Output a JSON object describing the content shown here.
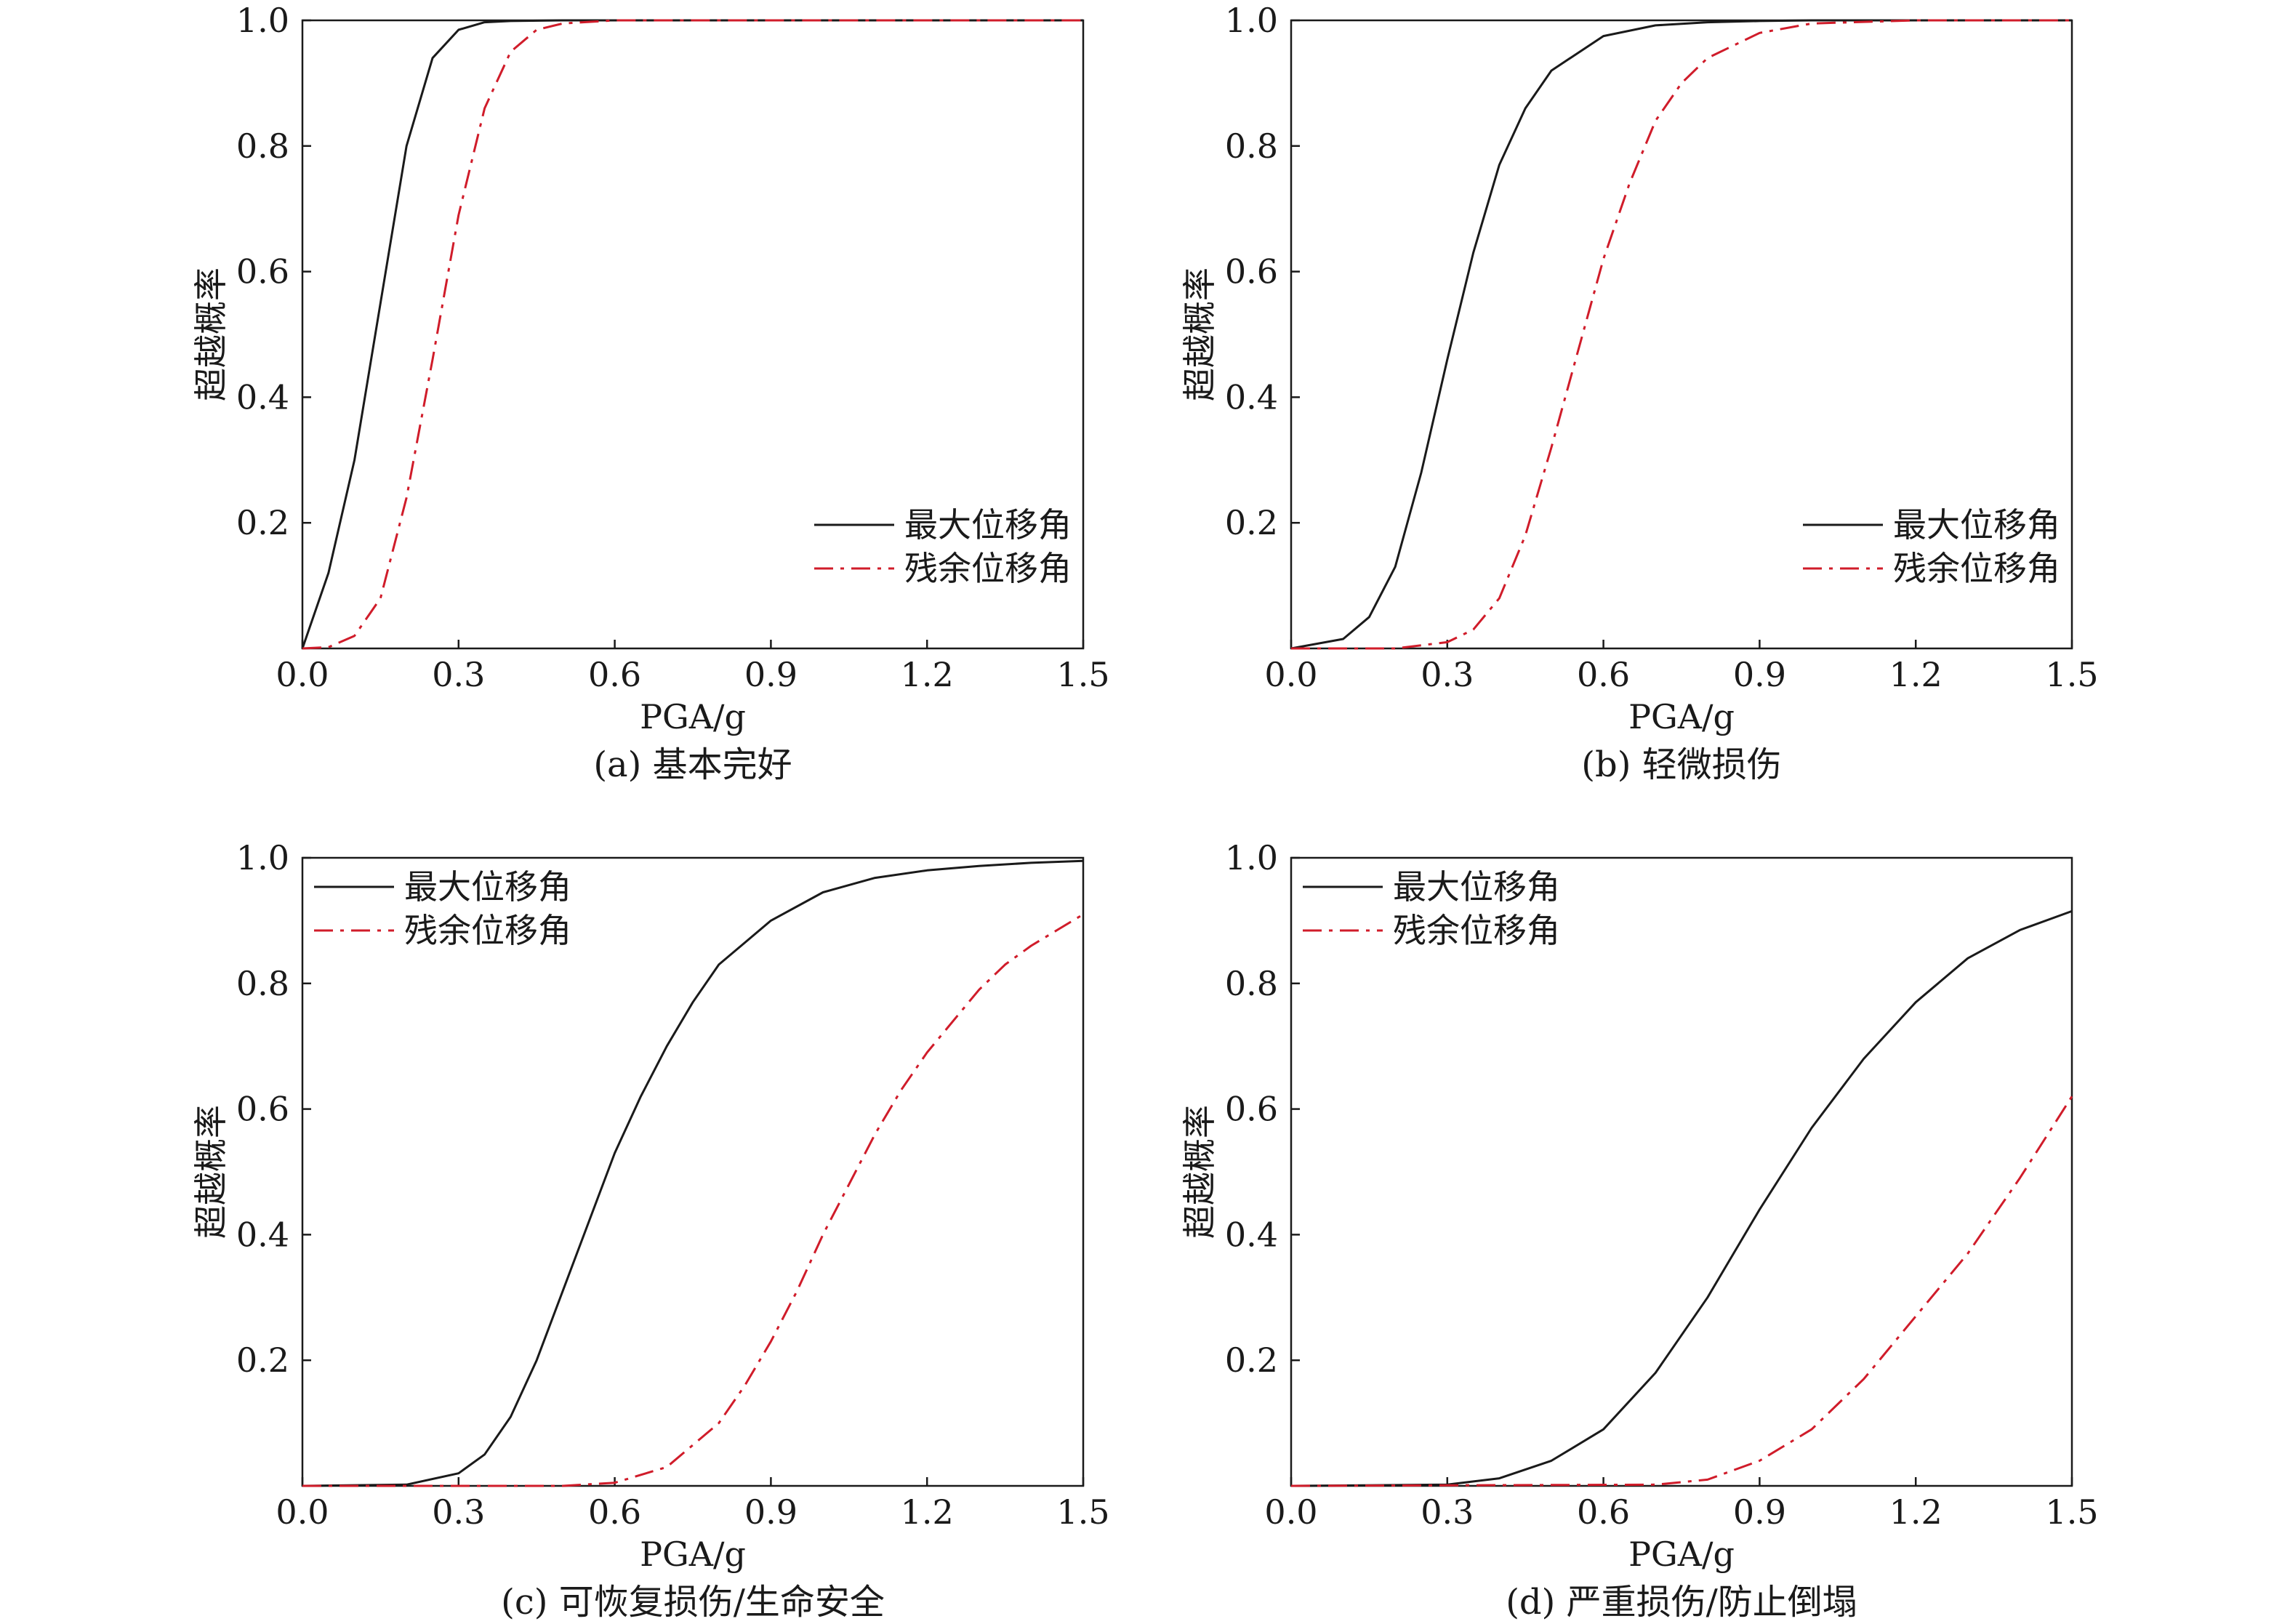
{
  "chart_data": [
    {
      "type": "line",
      "caption": "(a) 基本完好",
      "xlabel": "PGA/g",
      "ylabel": "超越概率",
      "xlim": [
        0,
        1.5
      ],
      "ylim": [
        0,
        1
      ],
      "xticks": [
        "0.0",
        "0.3",
        "0.6",
        "0.9",
        "1.2",
        "1.5"
      ],
      "yticks": [
        "0.2",
        "0.4",
        "0.6",
        "0.8",
        "1.0"
      ],
      "legend_position": "bottom-right",
      "series": [
        {
          "name": "最大位移角",
          "style": "solid",
          "color": "#1a1a1a",
          "x": [
            0.0,
            0.05,
            0.1,
            0.15,
            0.2,
            0.25,
            0.3,
            0.35,
            0.4,
            0.5,
            0.6,
            0.9,
            1.2,
            1.5
          ],
          "y": [
            0.0,
            0.12,
            0.3,
            0.55,
            0.8,
            0.94,
            0.985,
            0.997,
            0.999,
            1.0,
            1.0,
            1.0,
            1.0,
            1.0
          ]
        },
        {
          "name": "残余位移角",
          "style": "dashdot",
          "color": "#d01c2a",
          "x": [
            0.0,
            0.05,
            0.1,
            0.15,
            0.2,
            0.25,
            0.3,
            0.35,
            0.4,
            0.45,
            0.5,
            0.6,
            0.9,
            1.2,
            1.5
          ],
          "y": [
            0.0,
            0.002,
            0.02,
            0.08,
            0.24,
            0.46,
            0.69,
            0.86,
            0.95,
            0.985,
            0.995,
            1.0,
            1.0,
            1.0,
            1.0
          ]
        }
      ]
    },
    {
      "type": "line",
      "caption": "(b) 轻微损伤",
      "xlabel": "PGA/g",
      "ylabel": "超越概率",
      "xlim": [
        0,
        1.5
      ],
      "ylim": [
        0,
        1
      ],
      "xticks": [
        "0.0",
        "0.3",
        "0.6",
        "0.9",
        "1.2",
        "1.5"
      ],
      "yticks": [
        "0.2",
        "0.4",
        "0.6",
        "0.8",
        "1.0"
      ],
      "legend_position": "bottom-right",
      "series": [
        {
          "name": "最大位移角",
          "style": "solid",
          "color": "#1a1a1a",
          "x": [
            0.0,
            0.1,
            0.15,
            0.2,
            0.25,
            0.3,
            0.35,
            0.4,
            0.45,
            0.5,
            0.6,
            0.7,
            0.8,
            0.9,
            1.0,
            1.2,
            1.5
          ],
          "y": [
            0.0,
            0.015,
            0.05,
            0.13,
            0.28,
            0.46,
            0.63,
            0.77,
            0.86,
            0.92,
            0.975,
            0.992,
            0.997,
            0.999,
            1.0,
            1.0,
            1.0
          ]
        },
        {
          "name": "残余位移角",
          "style": "dashdot",
          "color": "#d01c2a",
          "x": [
            0.0,
            0.2,
            0.3,
            0.35,
            0.4,
            0.45,
            0.5,
            0.55,
            0.6,
            0.65,
            0.7,
            0.75,
            0.8,
            0.9,
            1.0,
            1.2,
            1.5
          ],
          "y": [
            0.0,
            0.0,
            0.01,
            0.03,
            0.08,
            0.18,
            0.32,
            0.47,
            0.62,
            0.74,
            0.84,
            0.9,
            0.94,
            0.98,
            0.995,
            1.0,
            1.0
          ]
        }
      ]
    },
    {
      "type": "line",
      "caption": "(c) 可恢复损伤/生命安全",
      "xlabel": "PGA/g",
      "ylabel": "超越概率",
      "xlim": [
        0,
        1.5
      ],
      "ylim": [
        0,
        1
      ],
      "xticks": [
        "0.0",
        "0.3",
        "0.6",
        "0.9",
        "1.2",
        "1.5"
      ],
      "yticks": [
        "0.2",
        "0.4",
        "0.6",
        "0.8",
        "1.0"
      ],
      "legend_position": "top-left",
      "series": [
        {
          "name": "最大位移角",
          "style": "solid",
          "color": "#1a1a1a",
          "x": [
            0.0,
            0.2,
            0.3,
            0.35,
            0.4,
            0.45,
            0.5,
            0.55,
            0.6,
            0.65,
            0.7,
            0.75,
            0.8,
            0.9,
            1.0,
            1.1,
            1.2,
            1.3,
            1.4,
            1.5
          ],
          "y": [
            0.0,
            0.002,
            0.02,
            0.05,
            0.11,
            0.2,
            0.31,
            0.42,
            0.53,
            0.62,
            0.7,
            0.77,
            0.83,
            0.9,
            0.945,
            0.968,
            0.98,
            0.987,
            0.992,
            0.995
          ]
        },
        {
          "name": "残余位移角",
          "style": "dashdot",
          "color": "#d01c2a",
          "x": [
            0.0,
            0.5,
            0.6,
            0.7,
            0.8,
            0.85,
            0.9,
            0.95,
            1.0,
            1.05,
            1.1,
            1.15,
            1.2,
            1.25,
            1.3,
            1.35,
            1.4,
            1.45,
            1.5
          ],
          "y": [
            0.0,
            0.0,
            0.005,
            0.03,
            0.1,
            0.16,
            0.23,
            0.31,
            0.4,
            0.48,
            0.56,
            0.63,
            0.69,
            0.74,
            0.79,
            0.83,
            0.86,
            0.885,
            0.91
          ]
        }
      ]
    },
    {
      "type": "line",
      "caption": "(d) 严重损伤/防止倒塌",
      "xlabel": "PGA/g",
      "ylabel": "超越概率",
      "xlim": [
        0,
        1.5
      ],
      "ylim": [
        0,
        1
      ],
      "xticks": [
        "0.0",
        "0.3",
        "0.6",
        "0.9",
        "1.2",
        "1.5"
      ],
      "yticks": [
        "0.2",
        "0.4",
        "0.6",
        "0.8",
        "1.0"
      ],
      "legend_position": "top-left",
      "series": [
        {
          "name": "最大位移角",
          "style": "solid",
          "color": "#1a1a1a",
          "x": [
            0.0,
            0.3,
            0.4,
            0.5,
            0.6,
            0.7,
            0.8,
            0.9,
            1.0,
            1.1,
            1.2,
            1.3,
            1.4,
            1.5
          ],
          "y": [
            0.0,
            0.002,
            0.012,
            0.04,
            0.09,
            0.18,
            0.3,
            0.44,
            0.57,
            0.68,
            0.77,
            0.84,
            0.885,
            0.915
          ]
        },
        {
          "name": "残余位移角",
          "style": "dashdot",
          "color": "#d01c2a",
          "x": [
            0.0,
            0.7,
            0.8,
            0.9,
            1.0,
            1.1,
            1.2,
            1.3,
            1.4,
            1.5
          ],
          "y": [
            0.0,
            0.002,
            0.01,
            0.04,
            0.09,
            0.17,
            0.27,
            0.37,
            0.49,
            0.62
          ]
        }
      ]
    }
  ]
}
